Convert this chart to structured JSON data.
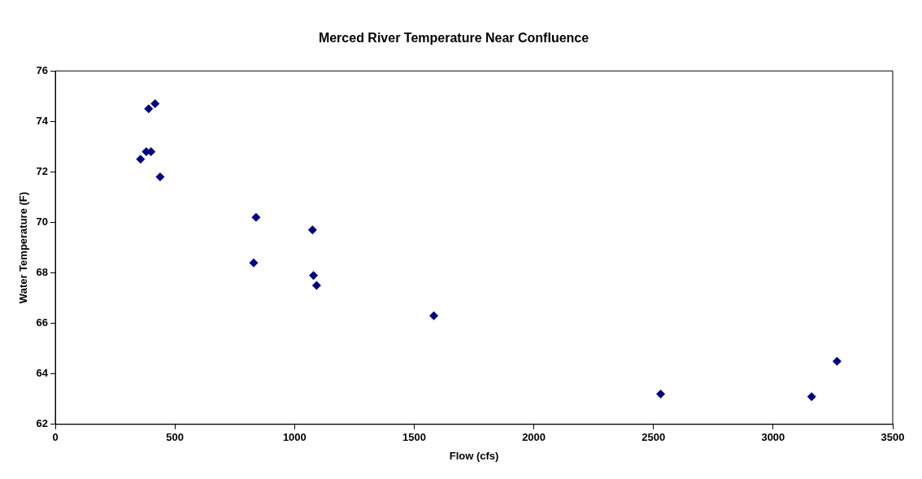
{
  "chart_data": {
    "type": "scatter",
    "title": "Merced River Temperature Near Confluence",
    "xlabel": "Flow (cfs)",
    "ylabel": "Water Temperature (F)",
    "x": [
      356,
      380,
      400,
      390,
      417,
      438,
      839,
      829,
      1075,
      1079,
      1092,
      1582,
      2530,
      3161,
      3267
    ],
    "series": [
      {
        "color": "#000080",
        "values": [
          72.5,
          72.8,
          72.8,
          74.5,
          74.7,
          71.8,
          70.2,
          68.4,
          69.7,
          67.9,
          67.5,
          66.3,
          63.2,
          63.1,
          64.5
        ]
      }
    ],
    "xlim": [
      0,
      3500
    ],
    "xticks": [
      0,
      500,
      1000,
      1500,
      2000,
      2500,
      3000,
      3500
    ],
    "ylim": [
      62,
      76
    ],
    "yticks": [
      62,
      64,
      66,
      68,
      70,
      72,
      74,
      76
    ],
    "grid": false,
    "legend": false,
    "marker": "diamond"
  }
}
